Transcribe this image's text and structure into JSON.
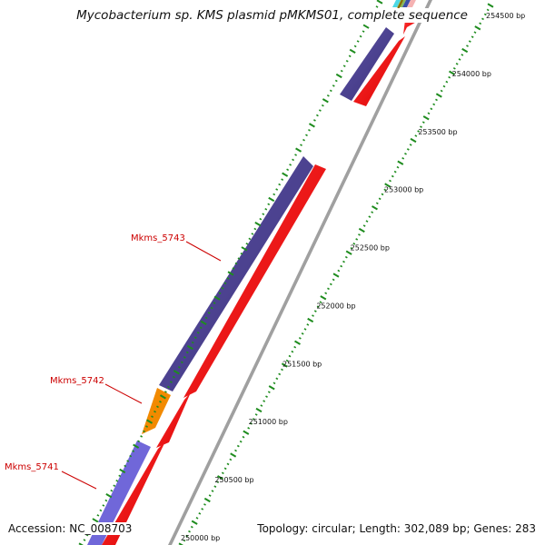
{
  "title": "Mycobacterium sp. KMS plasmid pMKMS01, complete sequence",
  "footer": {
    "accession": "Accession: NC_008703",
    "stats": "Topology: circular; Length: 302,089 bp; Genes: 283"
  },
  "colors": {
    "forward_gene": "#4a3f8c",
    "forward_gene_light": "#7067d9",
    "highlight_gene": "#f28a00",
    "reverse_gene": "#ff0000",
    "backbone": "#9a9a9a",
    "tick": "#1e8c1e",
    "label": "#cc0000"
  },
  "scale_labels": [
    {
      "bp": 250000,
      "text": "250000 bp"
    },
    {
      "bp": 250500,
      "text": "250500 bp"
    },
    {
      "bp": 251000,
      "text": "251000 bp"
    },
    {
      "bp": 251500,
      "text": "251500 bp"
    },
    {
      "bp": 252000,
      "text": "252000 bp"
    },
    {
      "bp": 252500,
      "text": "252500 bp"
    },
    {
      "bp": 253000,
      "text": "253000 bp"
    },
    {
      "bp": 253500,
      "text": "253500 bp"
    },
    {
      "bp": 254000,
      "text": "254000 bp"
    },
    {
      "bp": 254500,
      "text": "254500 bp"
    }
  ],
  "gene_labels": [
    {
      "name": "Mkms_5741"
    },
    {
      "name": "Mkms_5742"
    },
    {
      "name": "Mkms_5743"
    }
  ]
}
